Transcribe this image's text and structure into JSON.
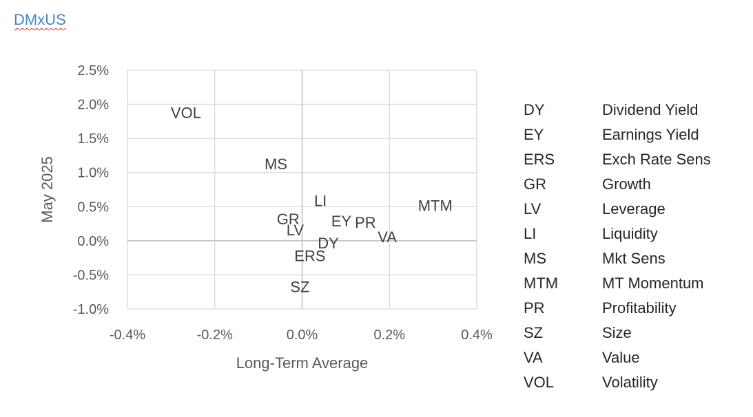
{
  "page": {
    "title": "DMxUS"
  },
  "chart_data": {
    "type": "scatter",
    "xlabel": "Long-Term Average",
    "ylabel": "May 2025",
    "xlim": [
      -0.004,
      0.004
    ],
    "ylim": [
      -0.01,
      0.025
    ],
    "x_ticks": [
      -0.004,
      -0.002,
      0.0,
      0.002,
      0.004
    ],
    "x_tick_labels": [
      "-0.4%",
      "-0.2%",
      "0.0%",
      "0.2%",
      "0.4%"
    ],
    "y_ticks": [
      -0.01,
      -0.005,
      0.0,
      0.005,
      0.01,
      0.015,
      0.02,
      0.025
    ],
    "y_tick_labels": [
      "-1.0%",
      "-0.5%",
      "0.0%",
      "0.5%",
      "1.0%",
      "1.5%",
      "2.0%",
      "2.5%"
    ],
    "grid": true,
    "points": [
      {
        "label": "VOL",
        "x": -0.00266,
        "y": 0.0188
      },
      {
        "label": "MS",
        "x": -0.0006,
        "y": 0.0113
      },
      {
        "label": "LI",
        "x": 0.00042,
        "y": 0.0059
      },
      {
        "label": "MTM",
        "x": 0.00305,
        "y": 0.0052
      },
      {
        "label": "GR",
        "x": -0.00032,
        "y": 0.0032
      },
      {
        "label": "EY",
        "x": 0.0009,
        "y": 0.0029
      },
      {
        "label": "PR",
        "x": 0.00145,
        "y": 0.0027
      },
      {
        "label": "LV",
        "x": -0.00016,
        "y": 0.0016
      },
      {
        "label": "VA",
        "x": 0.00195,
        "y": 0.0006
      },
      {
        "label": "DY",
        "x": 0.0006,
        "y": -0.0003
      },
      {
        "label": "ERS",
        "x": 0.00018,
        "y": -0.0022
      },
      {
        "label": "SZ",
        "x": -5e-05,
        "y": -0.0067
      }
    ]
  },
  "legend": [
    {
      "code": "DY",
      "name": "Dividend Yield"
    },
    {
      "code": "EY",
      "name": "Earnings Yield"
    },
    {
      "code": "ERS",
      "name": "Exch Rate Sens"
    },
    {
      "code": "GR",
      "name": "Growth"
    },
    {
      "code": "LV",
      "name": "Leverage"
    },
    {
      "code": "LI",
      "name": "Liquidity"
    },
    {
      "code": "MS",
      "name": "Mkt Sens"
    },
    {
      "code": "MTM",
      "name": "MT Momentum"
    },
    {
      "code": "PR",
      "name": "Profitability"
    },
    {
      "code": "SZ",
      "name": "Size"
    },
    {
      "code": "VA",
      "name": "Value"
    },
    {
      "code": "VOL",
      "name": "Volatility"
    }
  ]
}
